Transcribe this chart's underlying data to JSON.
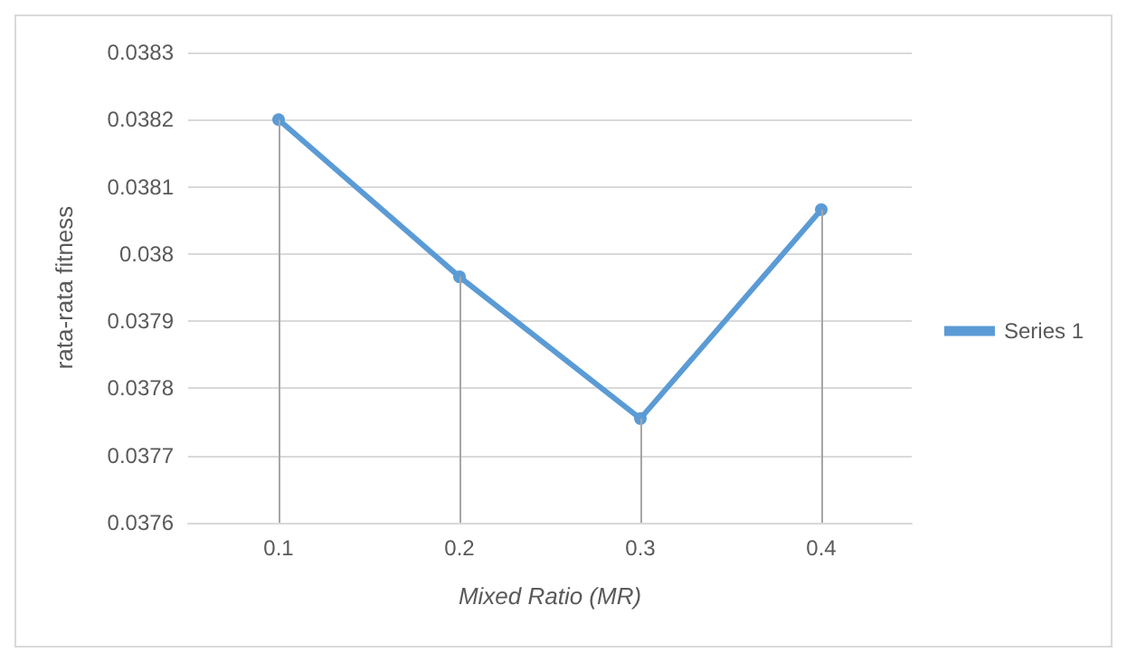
{
  "chart_data": {
    "type": "line",
    "xlabel": "Mixed Ratio (MR)",
    "ylabel": "rata-rata fitness",
    "categories": [
      "0.1",
      "0.2",
      "0.3",
      "0.4"
    ],
    "series": [
      {
        "name": "Series 1",
        "color": "#5b9bd5",
        "values": [
          0.0382,
          0.037966,
          0.037755,
          0.038066
        ],
        "errors": [
          [
            0.0376,
            0.0382
          ],
          [
            0.0376,
            0.037966
          ],
          [
            0.0376,
            0.037755
          ],
          [
            0.0376,
            0.038066
          ]
        ]
      }
    ],
    "ylim": [
      0.0376,
      0.0383
    ],
    "yticks": [
      0.0376,
      0.0377,
      0.0378,
      0.0379,
      0.038,
      0.0381,
      0.0382,
      0.0383
    ],
    "grid": "y",
    "legend": "right",
    "marker": "circle",
    "line_style": "solid"
  }
}
